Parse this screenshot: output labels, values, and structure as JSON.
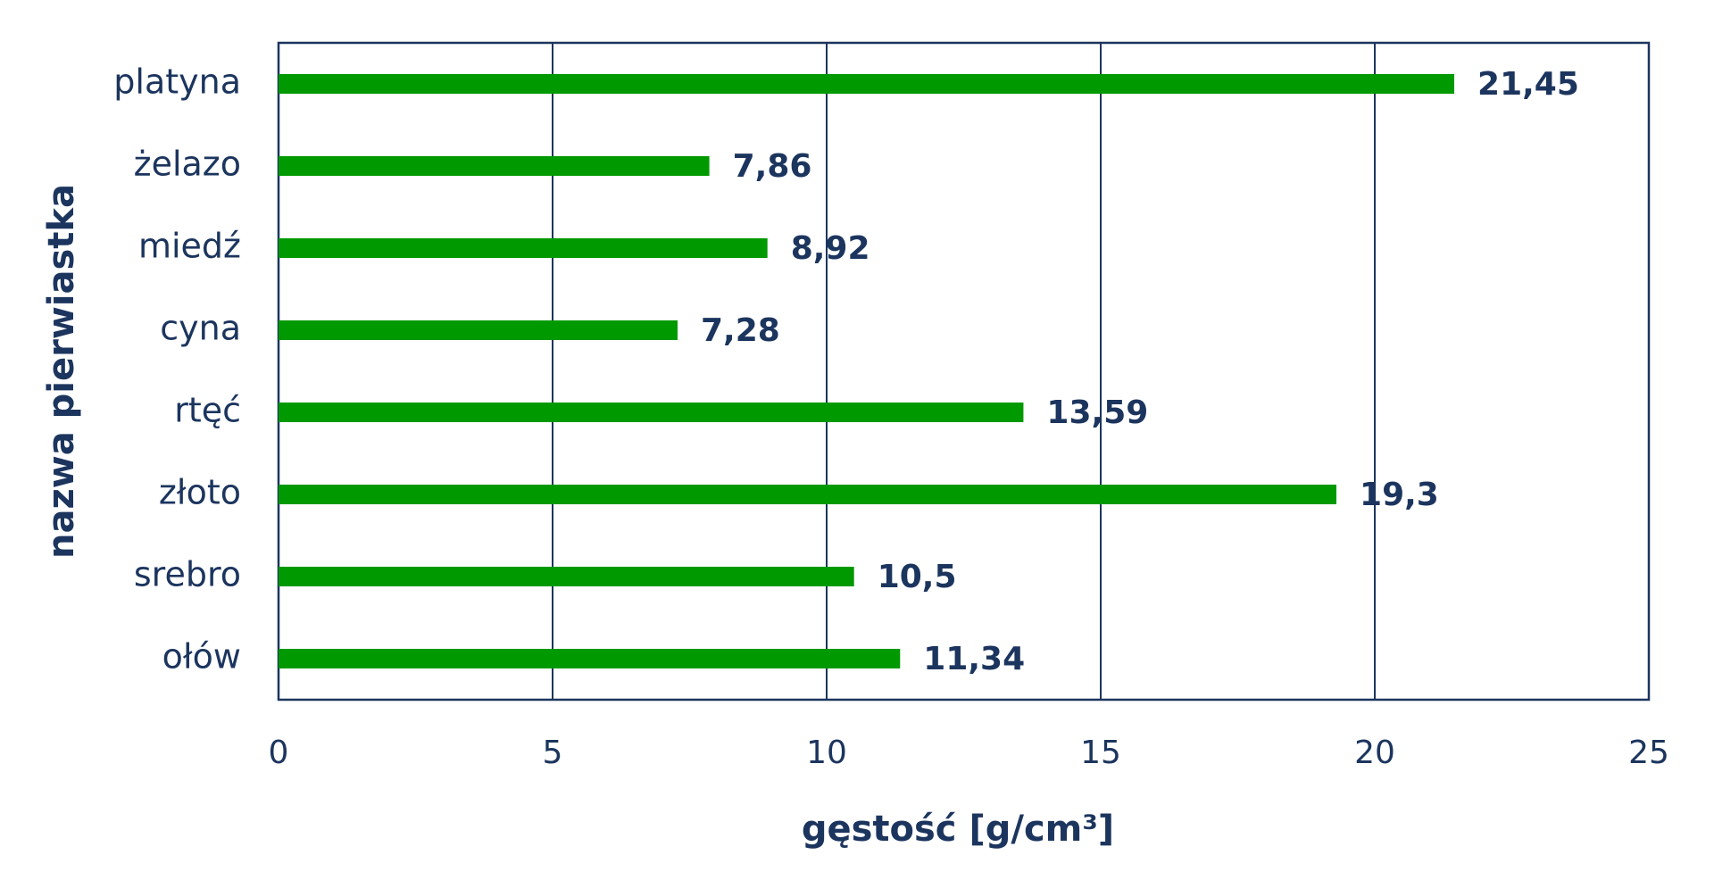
{
  "chart_data": {
    "type": "bar",
    "orientation": "horizontal",
    "x_label": "gęstość [g/cm³]",
    "y_label": "nazwa pierwiastka",
    "categories": [
      "platyna",
      "żelazo",
      "miedź",
      "cyna",
      "rtęć",
      "złoto",
      "srebro",
      "ołów"
    ],
    "values": [
      21.45,
      7.86,
      8.92,
      7.28,
      13.59,
      19.3,
      10.5,
      11.34
    ],
    "value_labels": [
      "21,45",
      "7,86",
      "8,92",
      "7,28",
      "13,59",
      "19,3",
      "10,5",
      "11,34"
    ],
    "color": "#009900",
    "xlim": [
      0,
      25
    ],
    "xticks": [
      0,
      5,
      10,
      15,
      20,
      25
    ],
    "grid": true
  }
}
